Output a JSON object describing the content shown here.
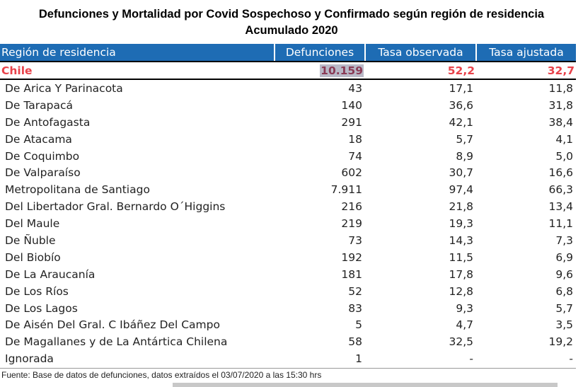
{
  "title_line1": "Defunciones y Mortalidad por Covid Sospechoso y Confirmado  según región de residencia",
  "title_line2": "Acumulado 2020",
  "headers": [
    "Región de residencia",
    "Defunciones",
    "Tasa observada",
    "Tasa ajustada"
  ],
  "total": {
    "region": "Chile",
    "defunciones": "10.159",
    "tasa_obs": "52,2",
    "tasa_aj": "32,7"
  },
  "rows": [
    {
      "region": "De Arica Y Parinacota",
      "defunciones": "43",
      "tasa_obs": "17,1",
      "tasa_aj": "11,8"
    },
    {
      "region": "De Tarapacá",
      "defunciones": "140",
      "tasa_obs": "36,6",
      "tasa_aj": "31,8"
    },
    {
      "region": "De Antofagasta",
      "defunciones": "291",
      "tasa_obs": "42,1",
      "tasa_aj": "38,4"
    },
    {
      "region": "De Atacama",
      "defunciones": "18",
      "tasa_obs": "5,7",
      "tasa_aj": "4,1"
    },
    {
      "region": "De Coquimbo",
      "defunciones": "74",
      "tasa_obs": "8,9",
      "tasa_aj": "5,0"
    },
    {
      "region": "De Valparaíso",
      "defunciones": "602",
      "tasa_obs": "30,7",
      "tasa_aj": "16,6"
    },
    {
      "region": "Metropolitana de Santiago",
      "defunciones": "7.911",
      "tasa_obs": "97,4",
      "tasa_aj": "66,3"
    },
    {
      "region": "Del Libertador Gral. Bernardo O´Higgins",
      "defunciones": "216",
      "tasa_obs": "21,8",
      "tasa_aj": "13,4"
    },
    {
      "region": "Del Maule",
      "defunciones": "219",
      "tasa_obs": "19,3",
      "tasa_aj": "11,1"
    },
    {
      "region": "De Ñuble",
      "defunciones": "73",
      "tasa_obs": "14,3",
      "tasa_aj": "7,3"
    },
    {
      "region": "Del Biobío",
      "defunciones": "192",
      "tasa_obs": "11,5",
      "tasa_aj": "6,9"
    },
    {
      "region": "De La Araucanía",
      "defunciones": "181",
      "tasa_obs": "17,8",
      "tasa_aj": "9,6"
    },
    {
      "region": "De Los Ríos",
      "defunciones": "52",
      "tasa_obs": "12,8",
      "tasa_aj": "6,8"
    },
    {
      "region": "De Los Lagos",
      "defunciones": "83",
      "tasa_obs": "9,3",
      "tasa_aj": "5,7"
    },
    {
      "region": "De Aisén Del Gral. C Ibáñez Del Campo",
      "defunciones": "5",
      "tasa_obs": "4,7",
      "tasa_aj": "3,5"
    },
    {
      "region": "De Magallanes y de La Antártica Chilena",
      "defunciones": "58",
      "tasa_obs": "32,5",
      "tasa_aj": "19,2"
    },
    {
      "region": "Ignorada",
      "defunciones": "1",
      "tasa_obs": "-",
      "tasa_aj": "-"
    }
  ],
  "footer": "Fuente: Base de datos de defunciones, datos extraídos el 03/07/2020 a las 15:30 hrs",
  "colors": {
    "header_bg": "#1e6cb4",
    "total_text": "#e8424a",
    "highlight": "#b9b9c7"
  }
}
